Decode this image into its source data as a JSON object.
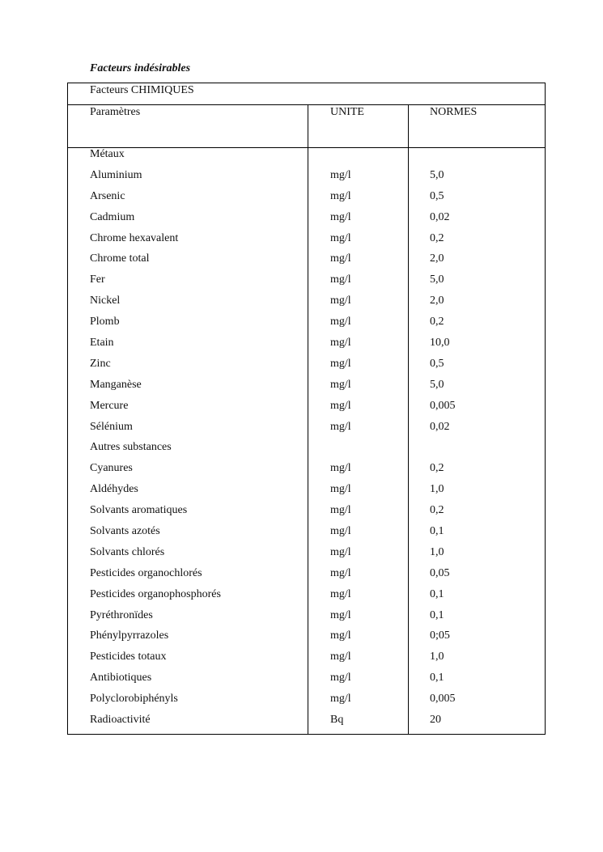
{
  "title": "Facteurs indésirables",
  "table": {
    "section": "Facteurs CHIMIQUES",
    "headers": {
      "param": "Paramètres",
      "unit": "UNITE",
      "norm": "NORMES"
    },
    "rows": [
      {
        "param": "Métaux",
        "unit": "",
        "norm": ""
      },
      {
        "param": "Aluminium",
        "unit": "mg/l",
        "norm": "5,0"
      },
      {
        "param": "Arsenic",
        "unit": "mg/l",
        "norm": "0,5"
      },
      {
        "param": "Cadmium",
        "unit": "mg/l",
        "norm": "0,02"
      },
      {
        "param": "Chrome hexavalent",
        "unit": "mg/l",
        "norm": "0,2"
      },
      {
        "param": "Chrome total",
        "unit": "mg/l",
        "norm": "2,0"
      },
      {
        "param": "Fer",
        "unit": "mg/l",
        "norm": "5,0"
      },
      {
        "param": "Nickel",
        "unit": "mg/l",
        "norm": "2,0"
      },
      {
        "param": "Plomb",
        "unit": "mg/l",
        "norm": "0,2"
      },
      {
        "param": "Etain",
        "unit": "mg/l",
        "norm": "10,0"
      },
      {
        "param": "Zinc",
        "unit": "mg/l",
        "norm": "0,5"
      },
      {
        "param": "Manganèse",
        "unit": "mg/l",
        "norm": "5,0"
      },
      {
        "param": "Mercure",
        "unit": "mg/l",
        "norm": "0,005"
      },
      {
        "param": "Sélénium",
        "unit": "mg/l",
        "norm": "0,02"
      },
      {
        "param": "Autres substances",
        "unit": "",
        "norm": ""
      },
      {
        "param": "Cyanures",
        "unit": "mg/l",
        "norm": "0,2"
      },
      {
        "param": "Aldéhydes",
        "unit": "mg/l",
        "norm": "1,0"
      },
      {
        "param": "Solvants aromatiques",
        "unit": "mg/l",
        "norm": "0,2"
      },
      {
        "param": "Solvants azotés",
        "unit": "mg/l",
        "norm": "0,1"
      },
      {
        "param": "Solvants chlorés",
        "unit": "mg/l",
        "norm": "1,0"
      },
      {
        "param": "Pesticides organochlorés",
        "unit": "mg/l",
        "norm": "0,05"
      },
      {
        "param": "Pesticides organophosphorés",
        "unit": "mg/l",
        "norm": "0,1"
      },
      {
        "param": "Pyréthronïdes",
        "unit": "mg/l",
        "norm": "0,1"
      },
      {
        "param": "Phénylpyrrazoles",
        "unit": "mg/l",
        "norm": "0;05"
      },
      {
        "param": "Pesticides totaux",
        "unit": "mg/l",
        "norm": "1,0"
      },
      {
        "param": "Antibiotiques",
        "unit": "mg/l",
        "norm": "0,1"
      },
      {
        "param": "Polyclorobiphényls",
        "unit": "mg/l",
        "norm": "0,005"
      },
      {
        "param": "Radioactivité",
        "unit": "Bq",
        "norm": "20"
      }
    ]
  }
}
